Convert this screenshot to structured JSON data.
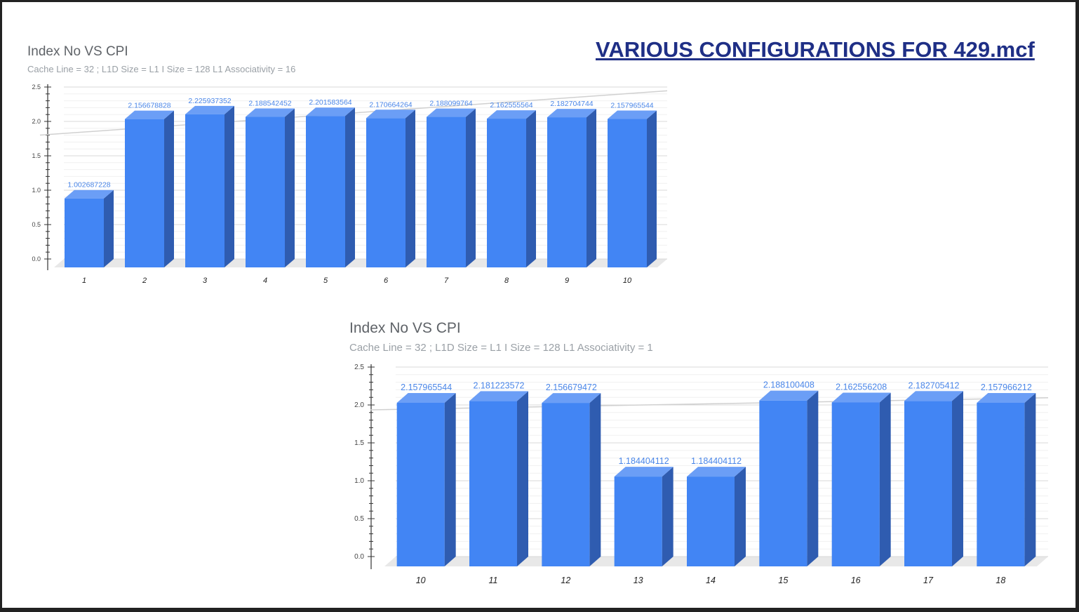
{
  "page": {
    "heading": "VARIOUS CONFIGURATIONS FOR 429.mcf"
  },
  "colors": {
    "bar_front": "#4285f4",
    "bar_top": "#6b9ef6",
    "bar_side": "#2f5cb0",
    "data_label": "#4a86e8",
    "heading": "#1f2f86"
  },
  "chart_data": [
    {
      "type": "bar",
      "style": "3d",
      "title": "Index No VS CPI",
      "subtitle": "Cache Line = 32 ; L1D Size = L1 I Size = 128  L1 Associativity = 16",
      "categories": [
        "1",
        "2",
        "3",
        "4",
        "5",
        "6",
        "7",
        "8",
        "9",
        "10"
      ],
      "values": [
        1.002687228,
        2.156678828,
        2.225937352,
        2.188542452,
        2.201583564,
        2.170664264,
        2.188099764,
        2.162555564,
        2.182704744,
        2.157965544
      ],
      "data_labels": [
        "1.002687228",
        "2.156678828",
        "2.225937352",
        "2.188542452",
        "2.201583564",
        "2.170664264",
        "2.188099764",
        "2.162555564",
        "2.182704744",
        "2.157965544"
      ],
      "yticks": [
        "0.0",
        "0.5",
        "1.0",
        "1.5",
        "2.0",
        "2.5"
      ],
      "ylim": [
        0,
        2.5
      ],
      "grid": true,
      "trendline": true
    },
    {
      "type": "bar",
      "style": "3d",
      "title": "Index No VS CPI",
      "subtitle": "Cache Line = 32 ; L1D Size = L1 I Size = 128  L1 Associativity = 1",
      "categories": [
        "10",
        "11",
        "12",
        "13",
        "14",
        "15",
        "16",
        "17",
        "18"
      ],
      "values": [
        2.157965544,
        2.181223572,
        2.156679472,
        1.184404112,
        1.184404112,
        2.188100408,
        2.162556208,
        2.182705412,
        2.157966212
      ],
      "data_labels": [
        "2.157965544",
        "2.181223572",
        "2.156679472",
        "1.184404112",
        "1.184404112",
        "2.188100408",
        "2.162556208",
        "2.182705412",
        "2.157966212"
      ],
      "yticks": [
        "0.0",
        "0.5",
        "1.0",
        "1.5",
        "2.0",
        "2.5"
      ],
      "ylim": [
        0,
        2.5
      ],
      "grid": true,
      "trendline": true
    }
  ]
}
